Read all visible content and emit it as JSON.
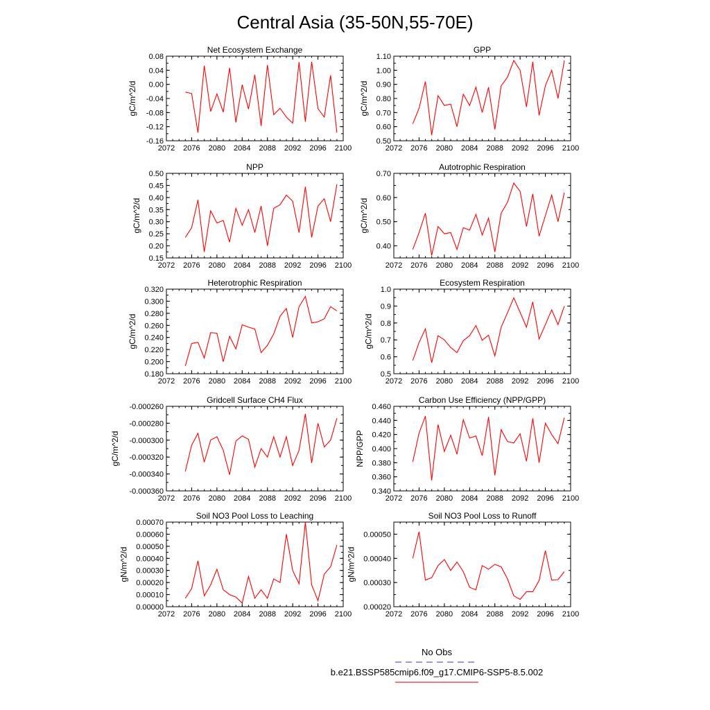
{
  "title": "Central Asia (35-50N,55-70E)",
  "legend": {
    "entries": [
      {
        "label": "No Obs",
        "color": "#3333cc",
        "dash": true
      },
      {
        "label": "b.e21.BSSP585cmip6.f09_g17.CMIP6-SSP5-8.5.002",
        "color": "#cc0000",
        "dash": false
      }
    ]
  },
  "chart_data": [
    {
      "type": "line",
      "title": "Net Ecosystem Exchange",
      "ylabel": "gC/m^2/d",
      "xlim": [
        2072,
        2100
      ],
      "ylim": [
        -0.16,
        0.08
      ],
      "xticks": [
        "2072",
        "2076",
        "2080",
        "2084",
        "2088",
        "2092",
        "2096",
        "2100"
      ],
      "yticks": [
        "-0.16",
        "-0.12",
        "-0.08",
        "-0.04",
        "0.00",
        "0.04",
        "0.08"
      ],
      "x": [
        2075,
        2076,
        2077,
        2078,
        2079,
        2080,
        2081,
        2082,
        2083,
        2084,
        2085,
        2086,
        2087,
        2088,
        2089,
        2090,
        2091,
        2092,
        2093,
        2094,
        2095,
        2096,
        2097,
        2098,
        2099
      ],
      "series": [
        {
          "values": [
            -0.022,
            -0.026,
            -0.137,
            0.053,
            -0.077,
            -0.027,
            -0.079,
            0.047,
            -0.108,
            -0.001,
            -0.07,
            0.027,
            -0.118,
            0.055,
            -0.086,
            -0.068,
            -0.093,
            -0.11,
            0.063,
            -0.106,
            0.064,
            -0.069,
            -0.093,
            0.026,
            -0.137
          ],
          "color": "#ff0000"
        }
      ]
    },
    {
      "type": "line",
      "title": "GPP",
      "ylabel": "gC/m^2/d",
      "xlim": [
        2072,
        2100
      ],
      "ylim": [
        0.5,
        1.1
      ],
      "xticks": [
        "2072",
        "2076",
        "2080",
        "2084",
        "2088",
        "2092",
        "2096",
        "2100"
      ],
      "yticks": [
        "0.50",
        "0.60",
        "0.70",
        "0.80",
        "0.90",
        "1.00",
        "1.10"
      ],
      "x": [
        2075,
        2076,
        2077,
        2078,
        2079,
        2080,
        2081,
        2082,
        2083,
        2084,
        2085,
        2086,
        2087,
        2088,
        2089,
        2090,
        2091,
        2092,
        2093,
        2094,
        2095,
        2096,
        2097,
        2098,
        2099
      ],
      "series": [
        {
          "values": [
            0.62,
            0.73,
            0.92,
            0.54,
            0.82,
            0.75,
            0.76,
            0.6,
            0.83,
            0.75,
            0.88,
            0.7,
            0.88,
            0.58,
            0.89,
            0.95,
            1.07,
            1.0,
            0.74,
            1.06,
            0.68,
            0.89,
            1.0,
            0.8,
            1.07
          ],
          "color": "#ff0000"
        }
      ]
    },
    {
      "type": "line",
      "title": "NPP",
      "ylabel": "gC/m^2/d",
      "xlim": [
        2072,
        2100
      ],
      "ylim": [
        0.15,
        0.5
      ],
      "xticks": [
        "2072",
        "2076",
        "2080",
        "2084",
        "2088",
        "2092",
        "2096",
        "2100"
      ],
      "yticks": [
        "0.15",
        "0.20",
        "0.25",
        "0.30",
        "0.35",
        "0.40",
        "0.45",
        "0.50"
      ],
      "x": [
        2075,
        2076,
        2077,
        2078,
        2079,
        2080,
        2081,
        2082,
        2083,
        2084,
        2085,
        2086,
        2087,
        2088,
        2089,
        2090,
        2091,
        2092,
        2093,
        2094,
        2095,
        2096,
        2097,
        2098,
        2099
      ],
      "series": [
        {
          "values": [
            0.235,
            0.275,
            0.39,
            0.175,
            0.345,
            0.295,
            0.305,
            0.215,
            0.355,
            0.285,
            0.35,
            0.255,
            0.365,
            0.2,
            0.355,
            0.37,
            0.41,
            0.385,
            0.255,
            0.445,
            0.235,
            0.365,
            0.395,
            0.3,
            0.455
          ],
          "color": "#ff0000"
        }
      ]
    },
    {
      "type": "line",
      "title": "Autotrophic Respiration",
      "ylabel": "gC/m^2/d",
      "xlim": [
        2072,
        2100
      ],
      "ylim": [
        0.35,
        0.7
      ],
      "xticks": [
        "2072",
        "2076",
        "2080",
        "2084",
        "2088",
        "2092",
        "2096",
        "2100"
      ],
      "yticks": [
        "0.40",
        "0.50",
        "0.60",
        "0.70"
      ],
      "x": [
        2075,
        2076,
        2077,
        2078,
        2079,
        2080,
        2081,
        2082,
        2083,
        2084,
        2085,
        2086,
        2087,
        2088,
        2089,
        2090,
        2091,
        2092,
        2093,
        2094,
        2095,
        2096,
        2097,
        2098,
        2099
      ],
      "series": [
        {
          "values": [
            0.385,
            0.455,
            0.535,
            0.36,
            0.48,
            0.45,
            0.455,
            0.385,
            0.475,
            0.465,
            0.53,
            0.445,
            0.515,
            0.375,
            0.535,
            0.58,
            0.66,
            0.625,
            0.48,
            0.615,
            0.44,
            0.525,
            0.61,
            0.5,
            0.62
          ],
          "color": "#ff0000"
        }
      ]
    },
    {
      "type": "line",
      "title": "Heterotrophic Respiration",
      "ylabel": "gC/m^2/d",
      "xlim": [
        2072,
        2100
      ],
      "ylim": [
        0.18,
        0.32
      ],
      "xticks": [
        "2072",
        "2076",
        "2080",
        "2084",
        "2088",
        "2092",
        "2096",
        "2100"
      ],
      "yticks": [
        "0.180",
        "0.200",
        "0.220",
        "0.240",
        "0.260",
        "0.280",
        "0.300",
        "0.320"
      ],
      "x": [
        2075,
        2076,
        2077,
        2078,
        2079,
        2080,
        2081,
        2082,
        2083,
        2084,
        2085,
        2086,
        2087,
        2088,
        2089,
        2090,
        2091,
        2092,
        2093,
        2094,
        2095,
        2096,
        2097,
        2098,
        2099
      ],
      "series": [
        {
          "values": [
            0.193,
            0.23,
            0.232,
            0.206,
            0.248,
            0.247,
            0.2,
            0.242,
            0.221,
            0.261,
            0.257,
            0.254,
            0.215,
            0.227,
            0.246,
            0.275,
            0.288,
            0.24,
            0.291,
            0.308,
            0.264,
            0.266,
            0.271,
            0.291,
            0.284
          ],
          "color": "#ff0000"
        }
      ]
    },
    {
      "type": "line",
      "title": "Ecosystem Respiration",
      "ylabel": "gC/m^2/d",
      "xlim": [
        2072,
        2100
      ],
      "ylim": [
        0.5,
        1.0
      ],
      "xticks": [
        "2072",
        "2076",
        "2080",
        "2084",
        "2088",
        "2092",
        "2096",
        "2100"
      ],
      "yticks": [
        "0.5",
        "0.6",
        "0.7",
        "0.8",
        "0.9",
        "1.0"
      ],
      "x": [
        2075,
        2076,
        2077,
        2078,
        2079,
        2080,
        2081,
        2082,
        2083,
        2084,
        2085,
        2086,
        2087,
        2088,
        2089,
        2090,
        2091,
        2092,
        2093,
        2094,
        2095,
        2096,
        2097,
        2098,
        2099
      ],
      "series": [
        {
          "values": [
            0.578,
            0.685,
            0.765,
            0.565,
            0.725,
            0.7,
            0.655,
            0.625,
            0.695,
            0.725,
            0.785,
            0.698,
            0.728,
            0.605,
            0.775,
            0.86,
            0.948,
            0.863,
            0.775,
            0.925,
            0.705,
            0.79,
            0.878,
            0.79,
            0.9
          ],
          "color": "#ff0000"
        }
      ]
    },
    {
      "type": "line",
      "title": "Gridcell Surface CH4 Flux",
      "ylabel": "gC/m^2/d",
      "xlim": [
        2072,
        2100
      ],
      "ylim": [
        -0.00036,
        -0.00026
      ],
      "xticks": [
        "2072",
        "2076",
        "2080",
        "2084",
        "2088",
        "2092",
        "2096",
        "2100"
      ],
      "yticks": [
        "-0.000360",
        "-0.000340",
        "-0.000320",
        "-0.000300",
        "-0.000280",
        "-0.000260"
      ],
      "x": [
        2075,
        2076,
        2077,
        2078,
        2079,
        2080,
        2081,
        2082,
        2083,
        2084,
        2085,
        2086,
        2087,
        2088,
        2089,
        2090,
        2091,
        2092,
        2093,
        2094,
        2095,
        2096,
        2097,
        2098,
        2099
      ],
      "series": [
        {
          "values": [
            -0.000337,
            -0.000306,
            -0.000292,
            -0.000326,
            -0.0003,
            -0.000296,
            -0.000312,
            -0.000341,
            -0.000301,
            -0.000295,
            -0.000299,
            -0.000332,
            -0.00031,
            -0.00032,
            -0.000296,
            -0.00032,
            -0.000296,
            -0.00033,
            -0.000312,
            -0.000269,
            -0.000327,
            -0.00028,
            -0.000308,
            -0.0003,
            -0.000274
          ],
          "color": "#ff0000"
        }
      ]
    },
    {
      "type": "line",
      "title": "Carbon Use Efficiency (NPP/GPP)",
      "ylabel": "NPP/GPP",
      "xlim": [
        2072,
        2100
      ],
      "ylim": [
        0.34,
        0.46
      ],
      "xticks": [
        "2072",
        "2076",
        "2080",
        "2084",
        "2088",
        "2092",
        "2096",
        "2100"
      ],
      "yticks": [
        "0.340",
        "0.360",
        "0.380",
        "0.400",
        "0.420",
        "0.440",
        "0.460"
      ],
      "x": [
        2075,
        2076,
        2077,
        2078,
        2079,
        2080,
        2081,
        2082,
        2083,
        2084,
        2085,
        2086,
        2087,
        2088,
        2089,
        2090,
        2091,
        2092,
        2093,
        2094,
        2095,
        2096,
        2097,
        2098,
        2099
      ],
      "series": [
        {
          "values": [
            0.381,
            0.422,
            0.446,
            0.355,
            0.434,
            0.396,
            0.419,
            0.392,
            0.441,
            0.415,
            0.418,
            0.39,
            0.445,
            0.362,
            0.427,
            0.41,
            0.408,
            0.421,
            0.382,
            0.443,
            0.38,
            0.436,
            0.42,
            0.407,
            0.444
          ],
          "color": "#ff0000"
        }
      ]
    },
    {
      "type": "line",
      "title": "Soil NO3 Pool Loss to Leaching",
      "ylabel": "gN/m^2/d",
      "xlim": [
        2072,
        2100
      ],
      "ylim": [
        0.0,
        0.0007
      ],
      "xticks": [
        "2072",
        "2076",
        "2080",
        "2084",
        "2088",
        "2092",
        "2096",
        "2100"
      ],
      "yticks": [
        "0.00000",
        "0.00010",
        "0.00020",
        "0.00030",
        "0.00040",
        "0.00050",
        "0.00060",
        "0.00070"
      ],
      "x": [
        2075,
        2076,
        2077,
        2078,
        2079,
        2080,
        2081,
        2082,
        2083,
        2084,
        2085,
        2086,
        2087,
        2088,
        2089,
        2090,
        2091,
        2092,
        2093,
        2094,
        2095,
        2096,
        2097,
        2098,
        2099
      ],
      "series": [
        {
          "values": [
            7e-05,
            0.00015,
            0.00038,
            9e-05,
            0.00018,
            0.00031,
            0.00014,
            0.0001,
            8e-05,
            3e-05,
            0.00025,
            7e-05,
            0.00014,
            7e-05,
            0.00023,
            0.0002,
            0.0006,
            0.0003,
            0.00019,
            0.0007,
            0.00018,
            5e-05,
            0.00027,
            0.00033,
            0.00051
          ],
          "color": "#ff0000"
        }
      ]
    },
    {
      "type": "line",
      "title": "Soil NO3 Pool Loss to Runoff",
      "ylabel": "gN/m^2/d",
      "xlim": [
        2072,
        2100
      ],
      "ylim": [
        0.0002,
        0.00055
      ],
      "xticks": [
        "2072",
        "2076",
        "2080",
        "2084",
        "2088",
        "2092",
        "2096",
        "2100"
      ],
      "yticks": [
        "0.00020",
        "0.00030",
        "0.00040",
        "0.00050"
      ],
      "x": [
        2075,
        2076,
        2077,
        2078,
        2079,
        2080,
        2081,
        2082,
        2083,
        2084,
        2085,
        2086,
        2087,
        2088,
        2089,
        2090,
        2091,
        2092,
        2093,
        2094,
        2095,
        2096,
        2097,
        2098,
        2099
      ],
      "series": [
        {
          "values": [
            0.0004,
            0.00051,
            0.00031,
            0.00032,
            0.00037,
            0.000395,
            0.00035,
            0.000385,
            0.000345,
            0.00028,
            0.00027,
            0.00037,
            0.000355,
            0.000375,
            0.000365,
            0.000315,
            0.000245,
            0.00023,
            0.000262,
            0.000262,
            0.000308,
            0.000432,
            0.00031,
            0.000312,
            0.000345
          ],
          "color": "#ff0000"
        }
      ]
    }
  ]
}
